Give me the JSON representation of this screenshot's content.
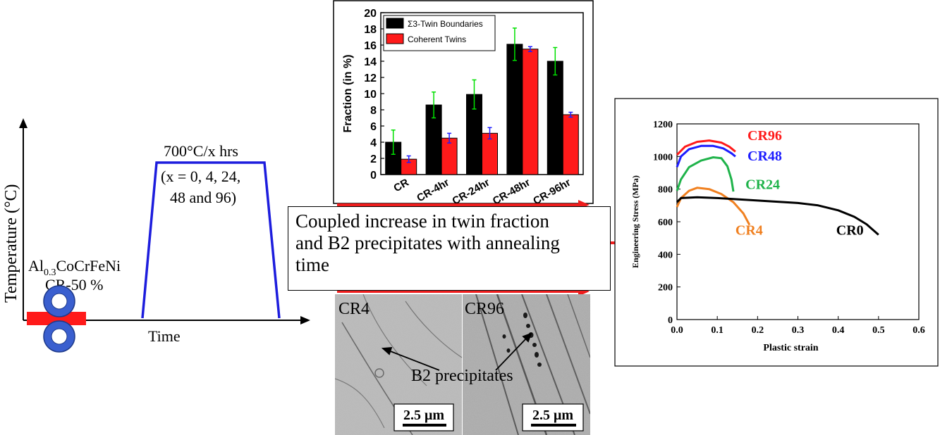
{
  "schematic": {
    "y_axis_label": "Temperature (°C)",
    "x_axis_label": "Time",
    "anneal_label": "700°C/x hrs",
    "anneal_values_line1": "(x = 0, 4, 24,",
    "anneal_values_line2": "48 and 96)",
    "alloy_prefix": "Al",
    "alloy_subscript": "0.3",
    "alloy_suffix": "CoCrFeNi",
    "reduction_label": "CR-50 %"
  },
  "caption": {
    "line1": "Coupled increase in twin fraction",
    "line2": "and B2 precipitates with annealing",
    "line3": "time"
  },
  "micrographs": {
    "left_label": "CR4",
    "right_label": "CR96",
    "precipitate_label": "B2 precipitates",
    "scale_bar_left": "2.5 μm",
    "scale_bar_right": "2.5 μm"
  },
  "colors": {
    "schematic_profile": "#1d1ddd",
    "roller": "#3a5fcf",
    "arrow": "#ee1c1c",
    "bar_sigma3": "#000000",
    "bar_coherent": "#ff1a1a",
    "error_sigma3": "#00e000",
    "error_coherent": "#1d1dff"
  },
  "chart_data": [
    {
      "type": "bar",
      "ylabel": "Fraction (in %)",
      "ylim": [
        0,
        20
      ],
      "yticks": [
        0,
        2,
        4,
        6,
        8,
        10,
        12,
        14,
        16,
        18,
        20
      ],
      "categories": [
        "CR",
        "CR-4hr",
        "CR-24hr",
        "CR-48hr",
        "CR-96hr"
      ],
      "legend_position": "top-left",
      "series": [
        {
          "name": "Σ3-Twin Boundaries",
          "values": [
            4.0,
            8.6,
            9.9,
            16.1,
            14.0
          ],
          "errors": [
            1.5,
            1.6,
            1.8,
            2.0,
            1.7
          ]
        },
        {
          "name": "Coherent Twins",
          "values": [
            1.9,
            4.5,
            5.1,
            15.5,
            7.4
          ],
          "errors": [
            0.4,
            0.6,
            0.7,
            0.3,
            0.3
          ]
        }
      ]
    },
    {
      "type": "line",
      "xlabel": "Plastic strain",
      "ylabel": "Engineering Stress (MPa)",
      "xlim": [
        0,
        0.6
      ],
      "ylim": [
        0,
        1200
      ],
      "xticks": [
        0.0,
        0.1,
        0.2,
        0.3,
        0.4,
        0.5,
        0.6
      ],
      "yticks": [
        0,
        200,
        400,
        600,
        800,
        1000,
        1200
      ],
      "series": [
        {
          "name": "CR96",
          "color": "#ff1a1a",
          "points": [
            [
              0,
              1010
            ],
            [
              0.02,
              1060
            ],
            [
              0.05,
              1090
            ],
            [
              0.08,
              1098
            ],
            [
              0.11,
              1085
            ],
            [
              0.13,
              1060
            ],
            [
              0.145,
              1030
            ]
          ]
        },
        {
          "name": "CR48",
          "color": "#1d1dff",
          "points": [
            [
              0,
              935
            ],
            [
              0.01,
              1000
            ],
            [
              0.03,
              1045
            ],
            [
              0.06,
              1065
            ],
            [
              0.09,
              1065
            ],
            [
              0.115,
              1050
            ],
            [
              0.135,
              1020
            ],
            [
              0.145,
              1000
            ]
          ]
        },
        {
          "name": "CR24",
          "color": "#1fb34a",
          "points": [
            [
              0,
              790
            ],
            [
              0.01,
              860
            ],
            [
              0.03,
              935
            ],
            [
              0.06,
              975
            ],
            [
              0.09,
              995
            ],
            [
              0.11,
              990
            ],
            [
              0.125,
              940
            ],
            [
              0.135,
              860
            ],
            [
              0.14,
              785
            ]
          ]
        },
        {
          "name": "CR4",
          "color": "#f08020",
          "points": [
            [
              0,
              690
            ],
            [
              0.01,
              745
            ],
            [
              0.03,
              790
            ],
            [
              0.05,
              808
            ],
            [
              0.08,
              800
            ],
            [
              0.11,
              770
            ],
            [
              0.14,
              720
            ],
            [
              0.165,
              650
            ],
            [
              0.18,
              580
            ]
          ]
        },
        {
          "name": "CR0",
          "color": "#000000",
          "points": [
            [
              0,
              720
            ],
            [
              0.01,
              745
            ],
            [
              0.05,
              750
            ],
            [
              0.1,
              745
            ],
            [
              0.2,
              730
            ],
            [
              0.3,
              715
            ],
            [
              0.35,
              700
            ],
            [
              0.4,
              670
            ],
            [
              0.44,
              630
            ],
            [
              0.47,
              585
            ],
            [
              0.5,
              520
            ]
          ]
        }
      ]
    }
  ]
}
